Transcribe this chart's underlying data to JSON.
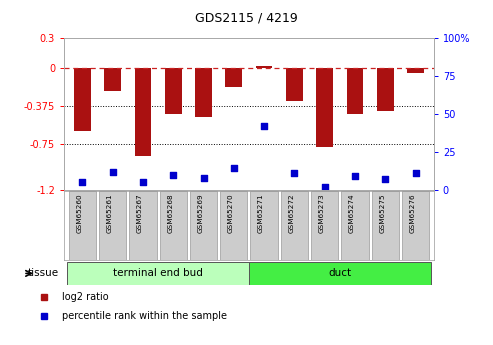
{
  "title": "GDS2115 / 4219",
  "samples": [
    "GSM65260",
    "GSM65261",
    "GSM65267",
    "GSM65268",
    "GSM65269",
    "GSM65270",
    "GSM65271",
    "GSM65272",
    "GSM65273",
    "GSM65274",
    "GSM65275",
    "GSM65276"
  ],
  "log2_ratio": [
    -0.62,
    -0.22,
    -0.87,
    -0.45,
    -0.48,
    -0.18,
    0.02,
    -0.32,
    -0.78,
    -0.45,
    -0.42,
    -0.05
  ],
  "percentile_rank": [
    5,
    12,
    5,
    10,
    8,
    14,
    42,
    11,
    2,
    9,
    7,
    11
  ],
  "tissue_groups": [
    {
      "label": "terminal end bud",
      "start": 0,
      "end": 5,
      "color": "#bbffbb"
    },
    {
      "label": "duct",
      "start": 6,
      "end": 11,
      "color": "#44ee44"
    }
  ],
  "ylim_left": [
    -1.2,
    0.3
  ],
  "ylim_right": [
    0,
    100
  ],
  "left_ticks": [
    0.3,
    0,
    -0.375,
    -0.75,
    -1.2
  ],
  "right_ticks": [
    100,
    75,
    50,
    25,
    0
  ],
  "bar_color": "#aa1111",
  "dot_color": "#0000cc",
  "hline_color": "#cc2222",
  "dot_hline_color": "#cc2222",
  "bg_color": "#ffffff",
  "sample_box_color": "#cccccc",
  "tissue_label": "tissue",
  "legend_log2": "log2 ratio",
  "legend_pct": "percentile rank within the sample",
  "bar_width": 0.55
}
